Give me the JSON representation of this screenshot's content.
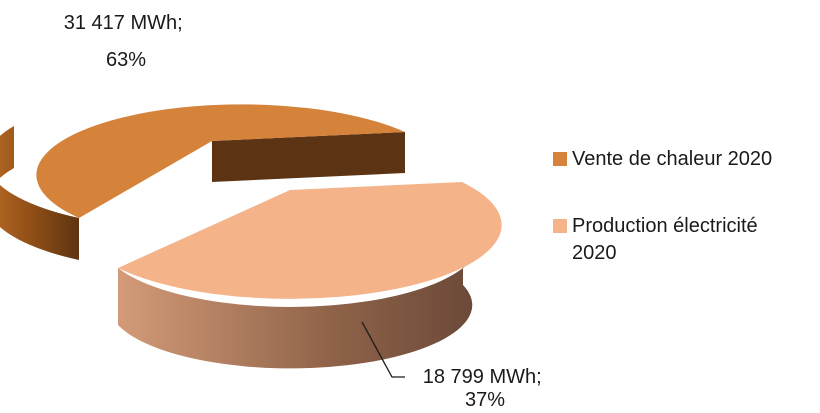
{
  "chart_data": {
    "type": "pie",
    "style": "3d-exploded",
    "series": [
      {
        "name": "",
        "slices": [
          {
            "label": "Vente de chaleur 2020",
            "value": 31417,
            "unit": "MWh",
            "percent": 63,
            "color": "#D5823A",
            "data_label": [
              "31 417 MWh;",
              "63%"
            ]
          },
          {
            "label": "Production électricité 2020",
            "value": 18799,
            "unit": "MWh",
            "percent": 37,
            "color": "#F4B388",
            "data_label": [
              "18 799 MWh;",
              "37%"
            ]
          }
        ]
      }
    ],
    "legend_position": "right"
  }
}
